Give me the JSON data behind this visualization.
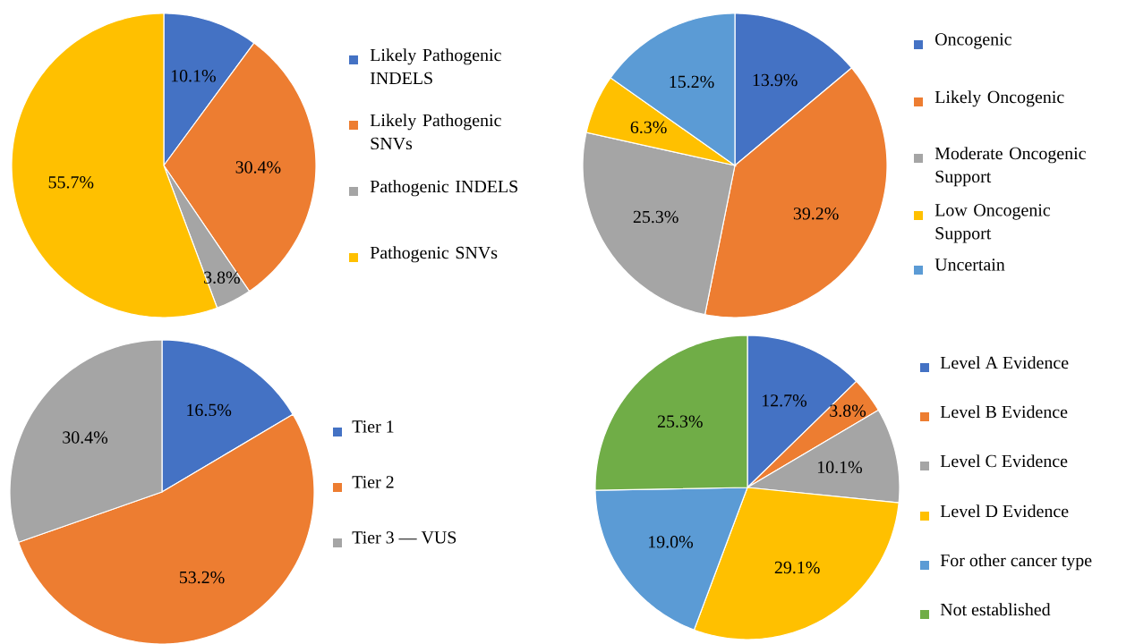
{
  "chart_data": [
    {
      "type": "pie",
      "categories": [
        "Likely Pathogenic INDELS",
        "Likely Pathogenic SNVs",
        "Pathogenic INDELS",
        "Pathogenic SNVs"
      ],
      "values": [
        10.1,
        30.4,
        3.8,
        55.7
      ],
      "colors": [
        "#4472c4",
        "#ed7d31",
        "#a5a5a5",
        "#ffc000"
      ],
      "value_labels": [
        "10.1%",
        "30.4%",
        "3.8%",
        "55.7%"
      ],
      "legend": "right"
    },
    {
      "type": "pie",
      "categories": [
        "Oncogenic",
        "Likely Oncogenic",
        "Moderate Oncogenic Support",
        "Low Oncogenic Support",
        "Uncertain"
      ],
      "values": [
        13.9,
        39.2,
        25.3,
        6.3,
        15.2
      ],
      "colors": [
        "#4472c4",
        "#ed7d31",
        "#a5a5a5",
        "#ffc000",
        "#5b9bd5"
      ],
      "value_labels": [
        "13.9%",
        "39.2%",
        "25.3%",
        "6.3%",
        "15.2%"
      ],
      "legend": "right"
    },
    {
      "type": "pie",
      "categories": [
        "Tier 1",
        "Tier 2",
        "Tier 3 — VUS"
      ],
      "values": [
        16.5,
        53.2,
        30.4
      ],
      "colors": [
        "#4472c4",
        "#ed7d31",
        "#a5a5a5"
      ],
      "value_labels": [
        "16.5%",
        "53.2%",
        "30.4%"
      ],
      "legend": "right"
    },
    {
      "type": "pie",
      "categories": [
        "Level A Evidence",
        "Level B Evidence",
        "Level C Evidence",
        "Level D Evidence",
        "For other cancer type",
        "Not established"
      ],
      "values": [
        12.7,
        3.8,
        10.1,
        29.1,
        19.0,
        25.3
      ],
      "colors": [
        "#4472c4",
        "#ed7d31",
        "#a5a5a5",
        "#ffc000",
        "#5b9bd5",
        "#70ad47"
      ],
      "value_labels": [
        "12.7%",
        "3.8%",
        "10.1%",
        "29.1%",
        "19.0%",
        "25.3%"
      ],
      "legend": "right"
    }
  ]
}
